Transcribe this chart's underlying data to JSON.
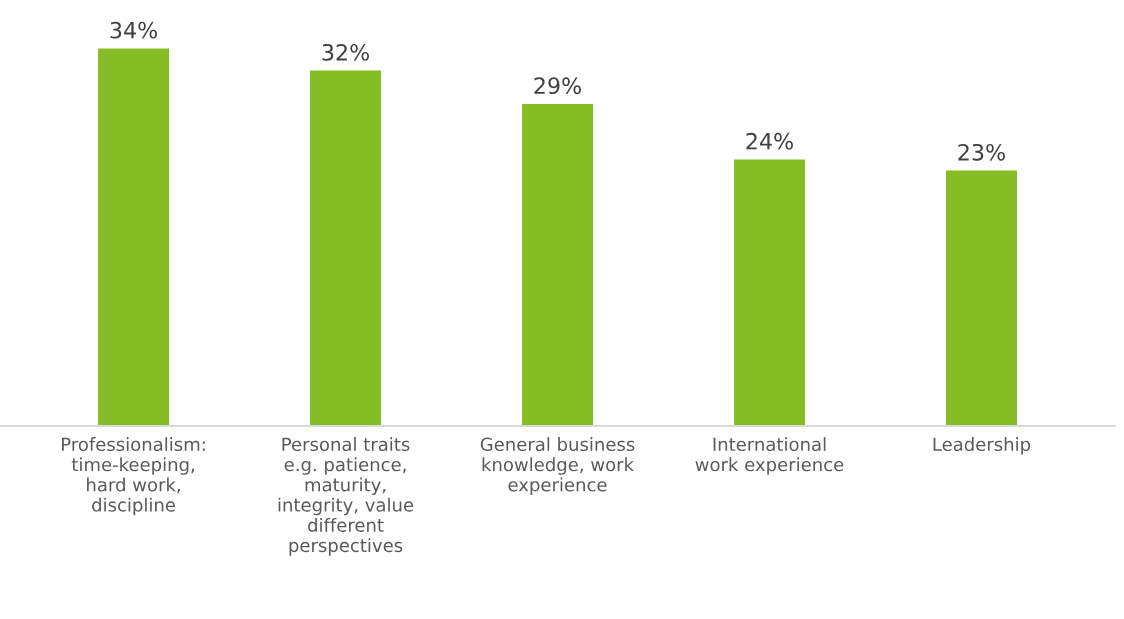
{
  "chart_data": {
    "type": "bar",
    "categories": [
      "Professionalism:\ntime-keeping,\nhard work,\ndiscipline",
      "Personal traits\ne.g. patience,\nmaturity,\nintegrity, value\ndifferent\nperspectives",
      "General business\nknowledge, work\nexperience",
      "International\nwork experience",
      "Leadership"
    ],
    "values": [
      34,
      32,
      29,
      24,
      23
    ],
    "value_labels": [
      "34%",
      "32%",
      "29%",
      "24%",
      "23%"
    ],
    "color": "#86bc25",
    "grid": false,
    "legend": false
  }
}
